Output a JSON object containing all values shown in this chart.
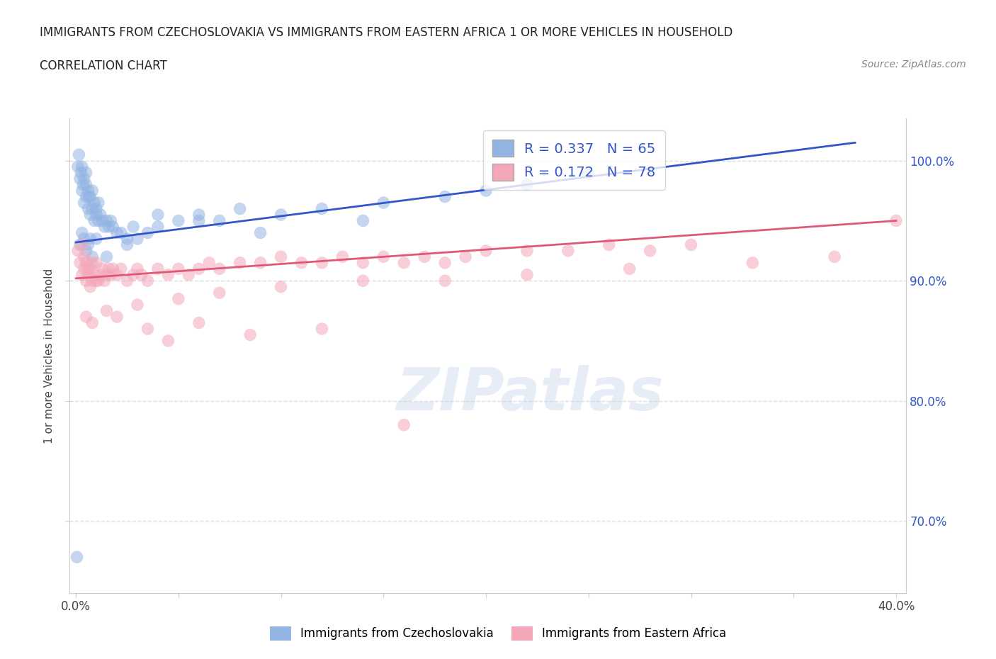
{
  "title_line1": "IMMIGRANTS FROM CZECHOSLOVAKIA VS IMMIGRANTS FROM EASTERN AFRICA 1 OR MORE VEHICLES IN HOUSEHOLD",
  "title_line2": "CORRELATION CHART",
  "source_text": "Source: ZipAtlas.com",
  "ylabel": "1 or more Vehicles in Household",
  "color_blue": "#92B4E3",
  "color_pink": "#F4A7B9",
  "line_blue": "#3355CC",
  "line_pink": "#E05878",
  "legend_text_color": "#3355CC",
  "R_blue": 0.337,
  "N_blue": 65,
  "R_pink": 0.172,
  "N_pink": 78,
  "blue_trend_x0": 0.0,
  "blue_trend_y0": 93.2,
  "blue_trend_x1": 38.0,
  "blue_trend_y1": 101.5,
  "pink_trend_x0": 0.0,
  "pink_trend_y0": 90.2,
  "pink_trend_x1": 40.0,
  "pink_trend_y1": 95.0,
  "xlim_min": -0.3,
  "xlim_max": 40.5,
  "ylim_min": 64.0,
  "ylim_max": 103.5,
  "y_ticks": [
    70.0,
    80.0,
    90.0,
    100.0
  ],
  "x_tick_show_first": "0.0%",
  "x_tick_show_last": "40.0%",
  "watermark": "ZIPatlas",
  "background_color": "#FFFFFF",
  "grid_color": "#DDDDDD",
  "blue_scatter_x": [
    0.1,
    0.15,
    0.2,
    0.25,
    0.3,
    0.3,
    0.35,
    0.4,
    0.4,
    0.5,
    0.5,
    0.5,
    0.6,
    0.6,
    0.65,
    0.7,
    0.7,
    0.8,
    0.8,
    0.9,
    0.9,
    1.0,
    1.0,
    1.1,
    1.1,
    1.2,
    1.3,
    1.4,
    1.5,
    1.6,
    1.7,
    1.8,
    2.0,
    2.2,
    2.5,
    2.8,
    3.0,
    3.5,
    4.0,
    5.0,
    6.0,
    7.0,
    8.0,
    10.0,
    12.0,
    15.0,
    18.0,
    20.0,
    22.0,
    25.0,
    0.2,
    0.3,
    0.4,
    0.5,
    0.6,
    0.7,
    0.8,
    1.0,
    1.5,
    2.5,
    4.0,
    6.0,
    9.0,
    14.0,
    0.05
  ],
  "blue_scatter_y": [
    99.5,
    100.5,
    98.5,
    99.0,
    97.5,
    99.5,
    98.0,
    96.5,
    98.5,
    97.0,
    98.0,
    99.0,
    96.0,
    97.5,
    97.0,
    95.5,
    97.0,
    96.0,
    97.5,
    95.0,
    96.5,
    95.5,
    96.0,
    95.0,
    96.5,
    95.5,
    95.0,
    94.5,
    95.0,
    94.5,
    95.0,
    94.5,
    94.0,
    94.0,
    93.5,
    94.5,
    93.5,
    94.0,
    95.5,
    95.0,
    95.5,
    95.0,
    96.0,
    95.5,
    96.0,
    96.5,
    97.0,
    97.5,
    98.0,
    99.0,
    93.0,
    94.0,
    93.5,
    92.5,
    93.0,
    93.5,
    92.0,
    93.5,
    92.0,
    93.0,
    94.5,
    95.0,
    94.0,
    95.0,
    67.0
  ],
  "pink_scatter_x": [
    0.1,
    0.2,
    0.3,
    0.3,
    0.4,
    0.4,
    0.5,
    0.5,
    0.6,
    0.6,
    0.7,
    0.7,
    0.8,
    0.8,
    0.9,
    1.0,
    1.0,
    1.1,
    1.2,
    1.3,
    1.4,
    1.5,
    1.6,
    1.7,
    1.8,
    2.0,
    2.2,
    2.5,
    2.8,
    3.0,
    3.2,
    3.5,
    4.0,
    4.5,
    5.0,
    5.5,
    6.0,
    6.5,
    7.0,
    8.0,
    9.0,
    10.0,
    11.0,
    12.0,
    13.0,
    14.0,
    15.0,
    16.0,
    17.0,
    18.0,
    19.0,
    20.0,
    22.0,
    24.0,
    26.0,
    28.0,
    30.0,
    3.0,
    5.0,
    7.0,
    10.0,
    14.0,
    18.0,
    22.0,
    27.0,
    33.0,
    37.0,
    40.0,
    0.5,
    0.8,
    1.5,
    2.0,
    3.5,
    4.5,
    6.0,
    8.5,
    12.0,
    16.0
  ],
  "pink_scatter_y": [
    92.5,
    91.5,
    90.5,
    93.0,
    91.0,
    92.0,
    90.0,
    91.5,
    90.5,
    91.0,
    89.5,
    91.0,
    90.0,
    91.5,
    90.5,
    90.0,
    91.5,
    90.0,
    90.5,
    91.0,
    90.0,
    90.5,
    91.0,
    90.5,
    91.0,
    90.5,
    91.0,
    90.0,
    90.5,
    91.0,
    90.5,
    90.0,
    91.0,
    90.5,
    91.0,
    90.5,
    91.0,
    91.5,
    91.0,
    91.5,
    91.5,
    92.0,
    91.5,
    91.5,
    92.0,
    91.5,
    92.0,
    91.5,
    92.0,
    91.5,
    92.0,
    92.5,
    92.5,
    92.5,
    93.0,
    92.5,
    93.0,
    88.0,
    88.5,
    89.0,
    89.5,
    90.0,
    90.0,
    90.5,
    91.0,
    91.5,
    92.0,
    95.0,
    87.0,
    86.5,
    87.5,
    87.0,
    86.0,
    85.0,
    86.5,
    85.5,
    86.0,
    78.0
  ]
}
